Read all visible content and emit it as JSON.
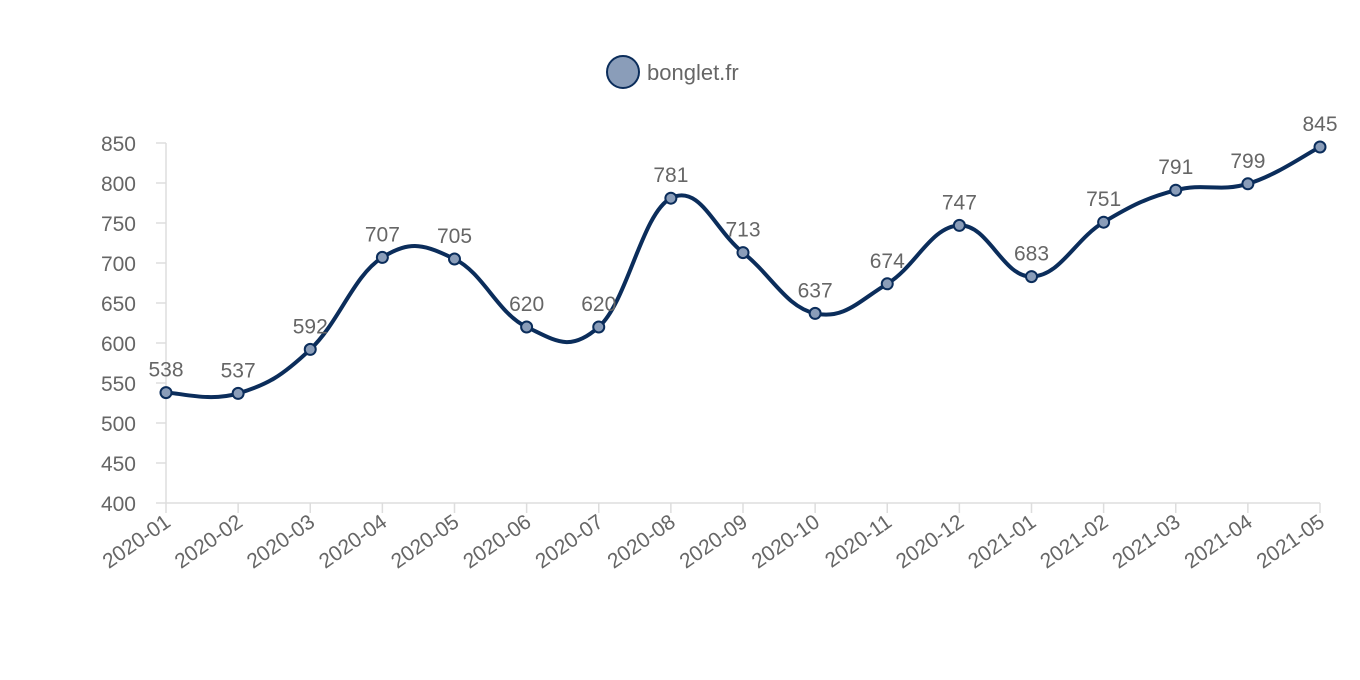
{
  "chart_data": {
    "type": "line",
    "categories": [
      "2020-01",
      "2020-02",
      "2020-03",
      "2020-04",
      "2020-05",
      "2020-06",
      "2020-07",
      "2020-08",
      "2020-09",
      "2020-10",
      "2020-11",
      "2020-12",
      "2021-01",
      "2021-02",
      "2021-03",
      "2021-04",
      "2021-05"
    ],
    "series": [
      {
        "name": "bonglet.fr",
        "values": [
          538,
          537,
          592,
          707,
          705,
          620,
          620,
          781,
          713,
          637,
          674,
          747,
          683,
          751,
          791,
          799,
          845
        ]
      }
    ],
    "ylim": [
      400,
      850
    ],
    "yticks": [
      400,
      450,
      500,
      550,
      600,
      650,
      700,
      750,
      800,
      850
    ],
    "grid": false,
    "legend": "top-center",
    "data_labels": true,
    "smooth": true
  },
  "colors": {
    "line": "#0b2d5b",
    "point_fill": "#8a9db9",
    "axis": "#dddddd",
    "text": "#666666"
  }
}
